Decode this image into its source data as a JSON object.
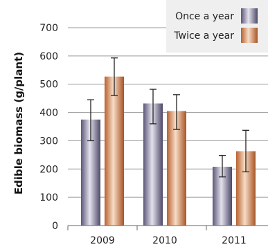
{
  "chart_data": {
    "type": "bar",
    "title": "",
    "xlabel": "",
    "ylabel": "Edible biomass (g/plant)",
    "ylim": [
      0,
      700
    ],
    "yticks": [
      0,
      100,
      200,
      300,
      400,
      500,
      600,
      700
    ],
    "grid": true,
    "legend_position": "top-right",
    "categories": [
      "2009",
      "2010",
      "2011"
    ],
    "series": [
      {
        "name": "Once a year",
        "color": "#6f6a8e",
        "values": [
          375,
          432,
          208
        ],
        "error": [
          [
            300,
            445
          ],
          [
            360,
            482
          ],
          [
            172,
            248
          ]
        ]
      },
      {
        "name": "Twice a year",
        "color": "#c8733f",
        "values": [
          527,
          405,
          263
        ],
        "error": [
          [
            460,
            593
          ],
          [
            340,
            463
          ],
          [
            190,
            337
          ]
        ]
      }
    ]
  }
}
